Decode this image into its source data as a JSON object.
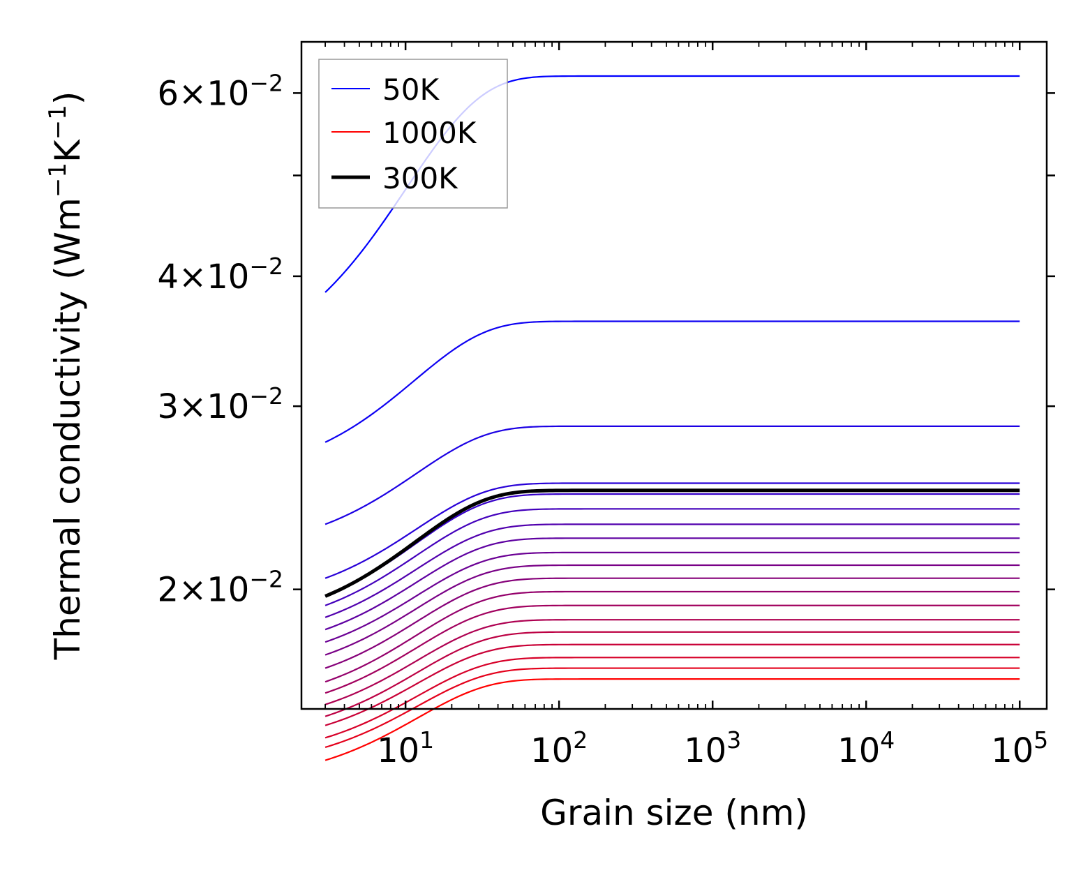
{
  "chart_data": {
    "type": "line",
    "xscale": "log",
    "yscale": "log",
    "xlabel": "Grain size (nm)",
    "ylabel": {
      "base": "Thermal conductivity (Wm",
      "sup1": "−1",
      "mid": "K",
      "sup2": "−1",
      "end": ")"
    },
    "xlim": [
      2.1,
      150000
    ],
    "ylim": [
      0.01535,
      0.0672
    ],
    "x_ticks": [
      {
        "value": 10,
        "base": "10",
        "exp": "1"
      },
      {
        "value": 100,
        "base": "10",
        "exp": "2"
      },
      {
        "value": 1000,
        "base": "10",
        "exp": "3"
      },
      {
        "value": 10000,
        "base": "10",
        "exp": "4"
      },
      {
        "value": 100000,
        "base": "10",
        "exp": "5"
      }
    ],
    "y_ticks": [
      {
        "value": 0.02,
        "coef": "2",
        "times": "×",
        "base": "10",
        "exp": "−2"
      },
      {
        "value": 0.03,
        "coef": "3",
        "times": "×",
        "base": "10",
        "exp": "−2"
      },
      {
        "value": 0.04,
        "coef": "4",
        "times": "×",
        "base": "10",
        "exp": "−2"
      },
      {
        "value": 0.06,
        "coef": "6",
        "times": "×",
        "base": "10",
        "exp": "−2"
      }
    ],
    "y_minor_ticks": [
      0.05
    ],
    "x_range": [
      3,
      100000
    ],
    "curve_length_scale_nm": 13,
    "series": [
      {
        "name": "50K",
        "color": "#0000ff",
        "k_start": 0.0386,
        "k_inf": 0.0623
      },
      {
        "name": "",
        "color": "#0d00f2",
        "k_start": 0.0277,
        "k_inf": 0.0362
      },
      {
        "name": "",
        "color": "#1b00e4",
        "k_start": 0.0231,
        "k_inf": 0.0287
      },
      {
        "name": "",
        "color": "#2800d7",
        "k_start": 0.0205,
        "k_inf": 0.0253
      },
      {
        "name": "",
        "color": "#3600c9",
        "k_start": 0.0197,
        "k_inf": 0.0247
      },
      {
        "name": "",
        "color": "#4300bc",
        "k_start": 0.0193,
        "k_inf": 0.0239
      },
      {
        "name": "",
        "color": "#5100ae",
        "k_start": 0.0188,
        "k_inf": 0.0231
      },
      {
        "name": "",
        "color": "#5e00a1",
        "k_start": 0.0183,
        "k_inf": 0.0224
      },
      {
        "name": "",
        "color": "#6b0094",
        "k_start": 0.0178,
        "k_inf": 0.0217
      },
      {
        "name": "",
        "color": "#790086",
        "k_start": 0.0173,
        "k_inf": 0.0211
      },
      {
        "name": "",
        "color": "#860079",
        "k_start": 0.0168,
        "k_inf": 0.0205
      },
      {
        "name": "",
        "color": "#94006b",
        "k_start": 0.0163,
        "k_inf": 0.0199
      },
      {
        "name": "",
        "color": "#a1005e",
        "k_start": 0.0159,
        "k_inf": 0.0193
      },
      {
        "name": "",
        "color": "#ae0051",
        "k_start": 0.0155,
        "k_inf": 0.0187
      },
      {
        "name": "",
        "color": "#bc0043",
        "k_start": 0.0151,
        "k_inf": 0.0182
      },
      {
        "name": "",
        "color": "#c90036",
        "k_start": 0.0148,
        "k_inf": 0.0177
      },
      {
        "name": "",
        "color": "#d70028",
        "k_start": 0.0144,
        "k_inf": 0.0172
      },
      {
        "name": "",
        "color": "#e4001b",
        "k_start": 0.0141,
        "k_inf": 0.0168
      },
      {
        "name": "1000K",
        "color": "#ff0000",
        "k_start": 0.0137,
        "k_inf": 0.0164
      },
      {
        "name": "300K",
        "color": "#000000",
        "k_start": 0.0197,
        "k_inf": 0.0249,
        "highlight": true
      }
    ],
    "legend": {
      "position": "top-left",
      "entries": [
        {
          "label": "50K",
          "color": "#0000ff",
          "bold": false
        },
        {
          "label": "1000K",
          "color": "#ff0000",
          "bold": false
        },
        {
          "label": "300K",
          "color": "#000000",
          "bold": true
        }
      ]
    }
  }
}
